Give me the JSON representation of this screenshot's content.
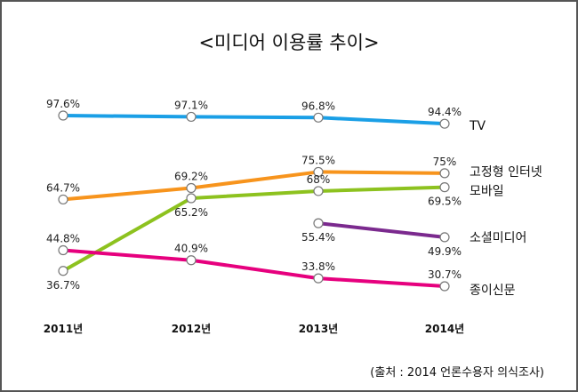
{
  "chart_data": {
    "type": "line",
    "title": "<미디어 이용률 추이>",
    "xlabel": "",
    "ylabel": "",
    "categories": [
      "2011년",
      "2012년",
      "2013년",
      "2014년"
    ],
    "series": [
      {
        "name": "TV",
        "color": "#1a9fe6",
        "values": [
          97.6,
          97.1,
          96.8,
          94.4
        ],
        "labels": [
          "97.6%",
          "97.1%",
          "96.8%",
          "94.4%"
        ]
      },
      {
        "name": "고정형 인터넷",
        "color": "#f7941d",
        "values": [
          64.7,
          69.2,
          75.5,
          75
        ],
        "labels": [
          "64.7%",
          "69.2%",
          "75.5%",
          "75%"
        ]
      },
      {
        "name": "모바일",
        "color": "#8dc21f",
        "values": [
          36.7,
          65.2,
          68,
          69.5
        ],
        "labels": [
          "36.7%",
          "65.2%",
          "68%",
          "69.5%"
        ]
      },
      {
        "name": "소셜미디어",
        "color": "#7b2a8e",
        "values": [
          null,
          null,
          55.4,
          49.9
        ],
        "labels": [
          null,
          null,
          "55.4%",
          "49.9%"
        ]
      },
      {
        "name": "종이신문",
        "color": "#e6007e",
        "values": [
          44.8,
          40.9,
          33.8,
          30.7
        ],
        "labels": [
          "44.8%",
          "40.9%",
          "33.8%",
          "30.7%"
        ]
      }
    ],
    "ylim": [
      30,
      100
    ],
    "grid": false,
    "legend": "right, inline at line ends",
    "source": "(출처 : 2014 언론수용자 의식조사)"
  }
}
